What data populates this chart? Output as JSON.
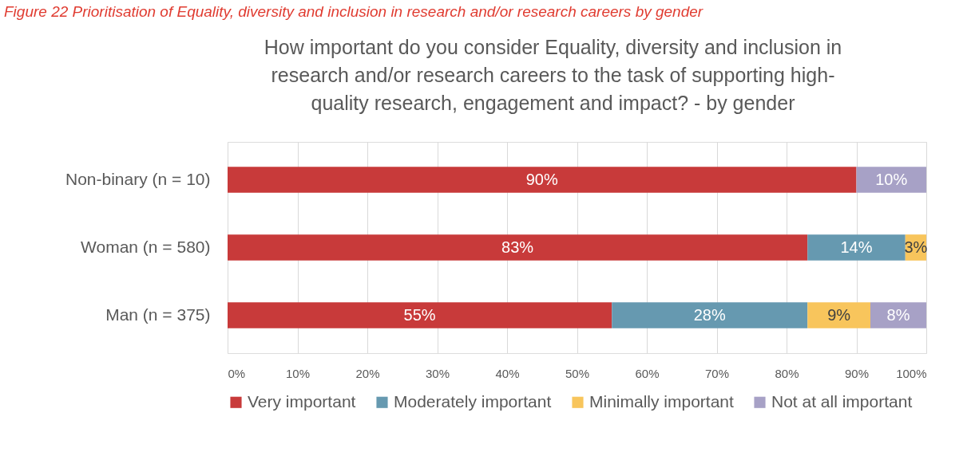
{
  "chart_data": {
    "type": "bar",
    "orientation": "horizontal",
    "stacked": true,
    "title": "How important do you consider Equality, diversity and inclusion in research and/or research careers to the task of supporting high-quality research, engagement and impact? - by gender",
    "annotations": [
      "Figure 22 Prioritisation of Equality, diversity and inclusion in research and/or research careers by gender"
    ],
    "categories": [
      "Non-binary (n = 10)",
      "Woman (n = 580)",
      "Man (n = 375)"
    ],
    "series": [
      {
        "name": "Very important",
        "color": "#c83a3a",
        "values": [
          90,
          83,
          55
        ],
        "value_labels": [
          "90%",
          "83%",
          "55%"
        ]
      },
      {
        "name": "Moderately important",
        "color": "#6699b0",
        "values": [
          null,
          14,
          28
        ],
        "value_labels": [
          null,
          "14%",
          "28%"
        ]
      },
      {
        "name": "Minimally important",
        "color": "#f8c55c",
        "values": [
          null,
          3,
          9
        ],
        "value_labels": [
          null,
          "3%",
          "9%"
        ]
      },
      {
        "name": "Not at all important",
        "color": "#a7a1c6",
        "values": [
          10,
          null,
          8
        ],
        "value_labels": [
          "10%",
          null,
          "8%"
        ]
      }
    ],
    "xlim": [
      0,
      100
    ],
    "xticks": [
      {
        "value": 0,
        "label": "0%"
      },
      {
        "value": 10,
        "label": "10%"
      },
      {
        "value": 20,
        "label": "20%"
      },
      {
        "value": 30,
        "label": "30%"
      },
      {
        "value": 40,
        "label": "40%"
      },
      {
        "value": 50,
        "label": "50%"
      },
      {
        "value": 60,
        "label": "60%"
      },
      {
        "value": 70,
        "label": "70%"
      },
      {
        "value": 80,
        "label": "80%"
      },
      {
        "value": 90,
        "label": "90%"
      },
      {
        "value": 100,
        "label": "100%"
      }
    ],
    "grid": "x",
    "legend": "bottom"
  }
}
